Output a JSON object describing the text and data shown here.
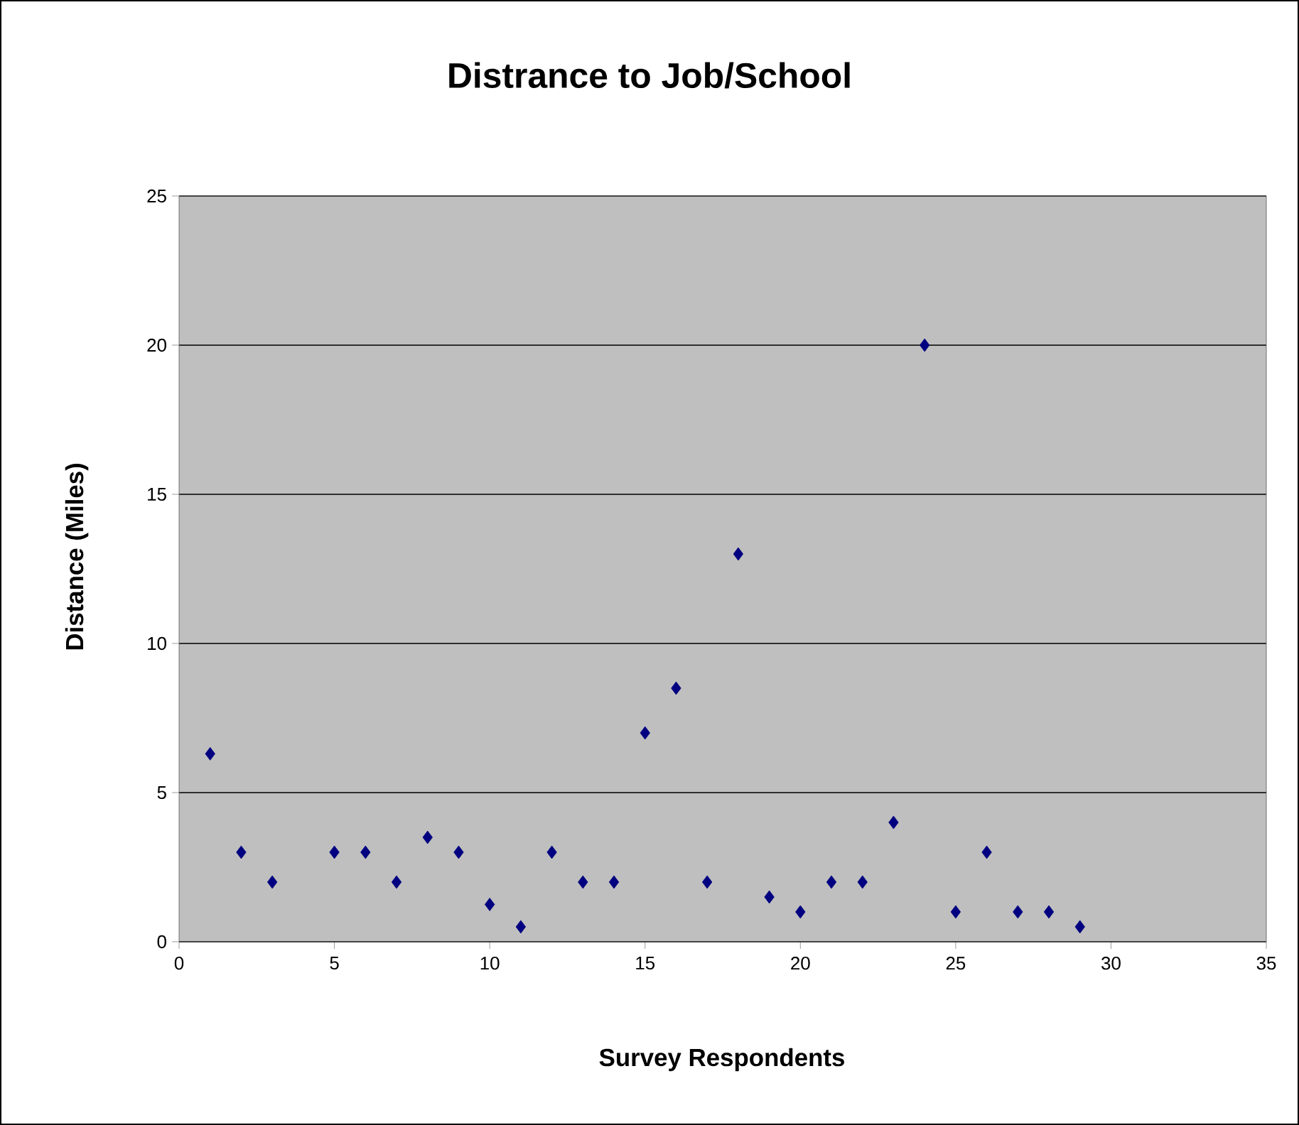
{
  "chart_data": {
    "type": "scatter",
    "title": "Distrance to Job/School",
    "xlabel": "Survey Respondents",
    "ylabel": "Distance (Miles)",
    "x": [
      1,
      2,
      3,
      5,
      6,
      7,
      8,
      9,
      10,
      11,
      12,
      13,
      14,
      15,
      16,
      17,
      18,
      19,
      20,
      21,
      22,
      23,
      24,
      25,
      26,
      27,
      28,
      29
    ],
    "values": [
      6.3,
      3,
      2,
      3,
      3,
      2,
      3.5,
      3,
      1.25,
      0.5,
      3,
      2,
      2,
      7,
      8.5,
      2,
      13,
      1.5,
      1,
      2,
      2,
      4,
      20,
      1,
      3,
      1,
      1,
      0.5
    ],
    "color": "#000080",
    "marker": "diamond",
    "grid": "y",
    "xlim": [
      0,
      35
    ],
    "xticks": [
      0,
      5,
      10,
      15,
      20,
      25,
      30,
      35
    ],
    "ylim": [
      0,
      25
    ],
    "yticks": [
      0,
      5,
      10,
      15,
      20,
      25
    ]
  }
}
